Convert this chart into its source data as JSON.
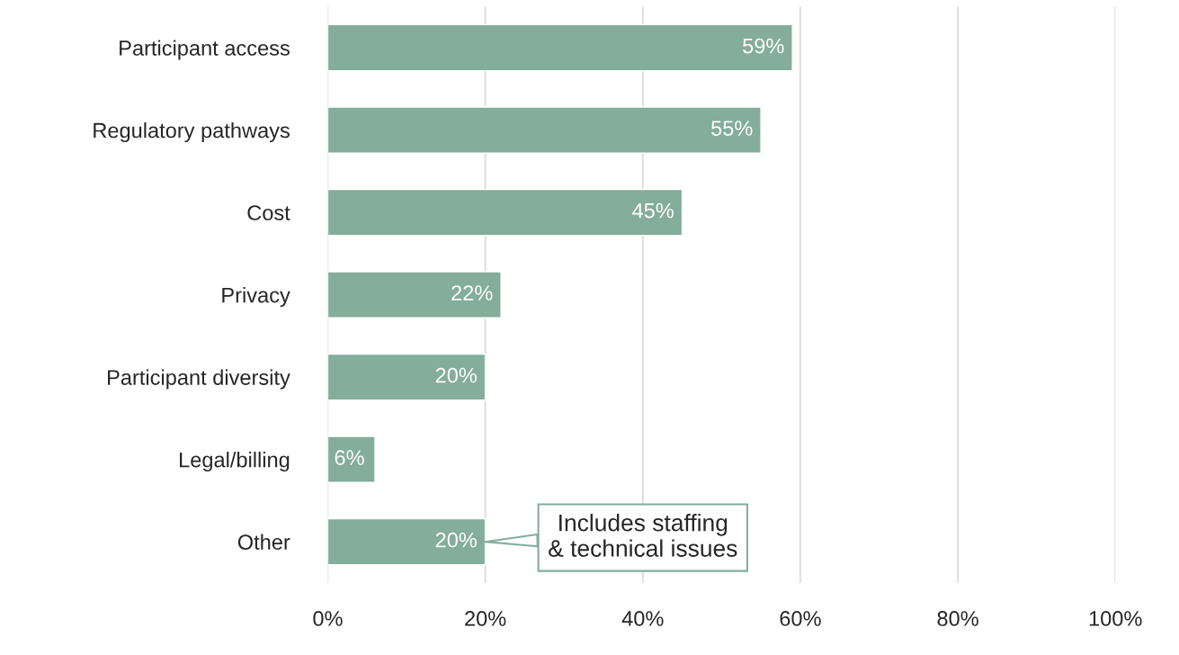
{
  "chart_data": {
    "type": "bar",
    "orientation": "horizontal",
    "categories": [
      "Participant access",
      "Regulatory pathways",
      "Cost",
      "Privacy",
      "Participant diversity",
      "Legal/billing",
      "Other"
    ],
    "series": [
      {
        "color": "#84ad9b",
        "values": [
          59,
          55,
          45,
          22,
          20,
          6,
          20
        ],
        "value_labels": [
          "59%",
          "55%",
          "45%",
          "22%",
          "20%",
          "6%",
          "20%"
        ]
      }
    ],
    "xlim": [
      0,
      100
    ],
    "xticks": [
      {
        "value": 0,
        "label": "0%"
      },
      {
        "value": 20,
        "label": "20%"
      },
      {
        "value": 40,
        "label": "40%"
      },
      {
        "value": 60,
        "label": "60%"
      },
      {
        "value": 80,
        "label": "80%"
      },
      {
        "value": 100,
        "label": "100%"
      }
    ],
    "grid": "x",
    "annotations": [
      {
        "text": "Includes staffing\n& technical issues",
        "x": 20,
        "y": "Other"
      }
    ]
  }
}
